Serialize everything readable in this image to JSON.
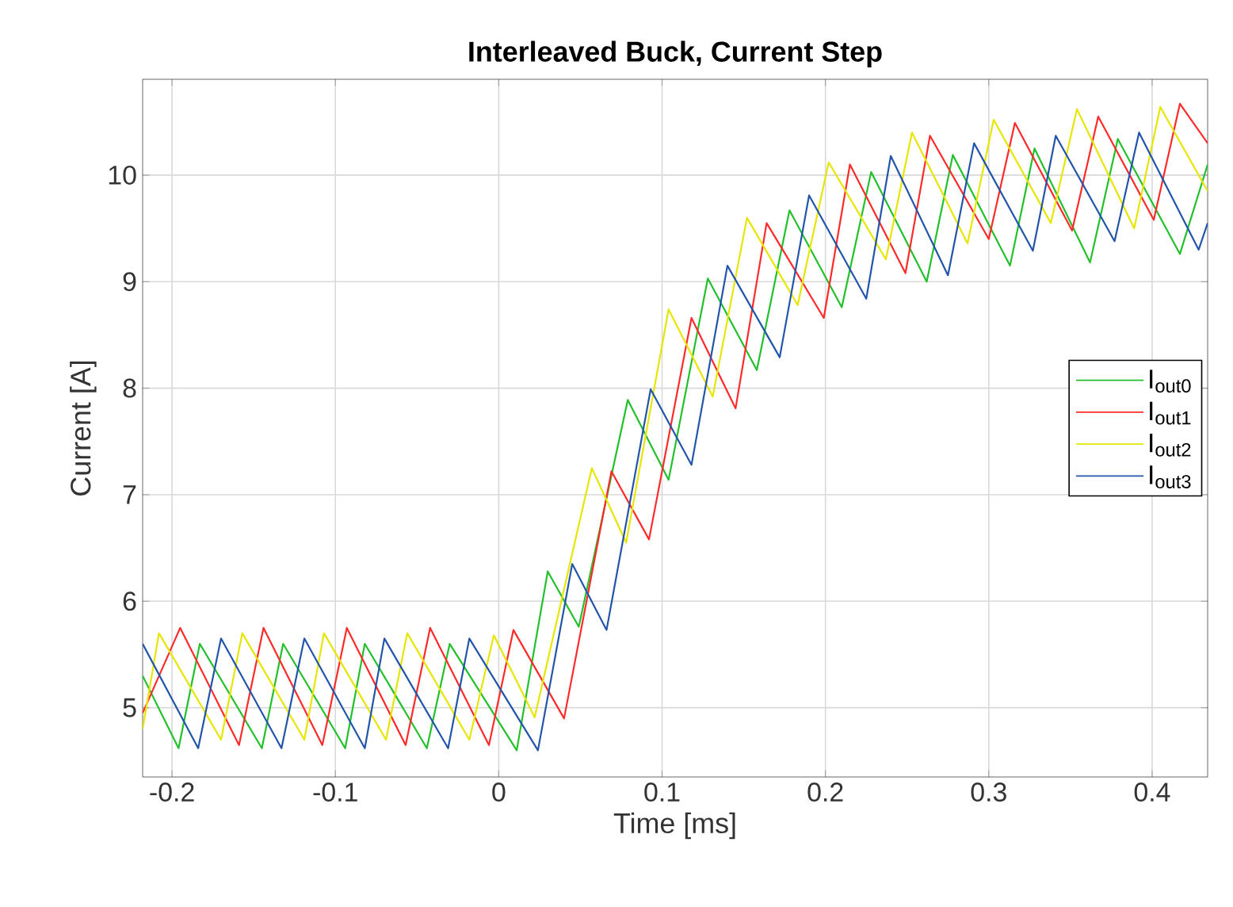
{
  "chart_data": {
    "type": "line",
    "title": "Interleaved Buck, Current Step",
    "xlabel": "Time [ms]",
    "ylabel": "Current [A]",
    "xlim": [
      -0.218,
      0.434
    ],
    "ylim": [
      4.35,
      10.9
    ],
    "xticks": [
      -0.2,
      -0.1,
      0,
      0.1,
      0.2,
      0.3,
      0.4
    ],
    "yticks": [
      5,
      6,
      7,
      8,
      9,
      10
    ],
    "grid": true,
    "legend": "right",
    "marker": "none",
    "line_style": "solid",
    "series": [
      {
        "name": "I$_{out0}$",
        "color": "#22c02a",
        "x": [
          -0.218,
          -0.196,
          -0.183,
          -0.145,
          -0.132,
          -0.094,
          -0.082,
          -0.044,
          -0.03,
          0.011,
          0.03,
          0.049,
          0.079,
          0.104,
          0.128,
          0.158,
          0.178,
          0.21,
          0.228,
          0.262,
          0.278,
          0.313,
          0.328,
          0.362,
          0.379,
          0.417,
          0.434
        ],
        "values": [
          5.3,
          4.62,
          5.6,
          4.62,
          5.6,
          4.62,
          5.6,
          4.62,
          5.6,
          4.6,
          6.28,
          5.76,
          7.89,
          7.14,
          9.03,
          8.17,
          9.67,
          8.76,
          10.03,
          9.0,
          10.19,
          9.15,
          10.25,
          9.18,
          10.34,
          9.26,
          10.1
        ]
      },
      {
        "name": "I$_{out1}$",
        "color": "#ff2a2a",
        "x": [
          -0.218,
          -0.195,
          -0.159,
          -0.144,
          -0.108,
          -0.093,
          -0.057,
          -0.042,
          -0.006,
          0.009,
          0.04,
          0.069,
          0.092,
          0.118,
          0.145,
          0.164,
          0.199,
          0.215,
          0.249,
          0.264,
          0.3,
          0.316,
          0.351,
          0.367,
          0.401,
          0.417,
          0.434
        ],
        "values": [
          4.95,
          5.75,
          4.65,
          5.75,
          4.65,
          5.75,
          4.65,
          5.75,
          4.65,
          5.73,
          4.9,
          7.22,
          6.58,
          8.66,
          7.81,
          9.55,
          8.66,
          10.1,
          9.08,
          10.37,
          9.4,
          10.49,
          9.48,
          10.55,
          9.58,
          10.67,
          10.3
        ]
      },
      {
        "name": "I$_{out2}$",
        "color": "#e6e600",
        "x": [
          -0.218,
          -0.208,
          -0.17,
          -0.157,
          -0.119,
          -0.107,
          -0.069,
          -0.056,
          -0.018,
          -0.003,
          0.022,
          0.057,
          0.078,
          0.104,
          0.131,
          0.152,
          0.183,
          0.202,
          0.237,
          0.253,
          0.287,
          0.303,
          0.338,
          0.354,
          0.389,
          0.405,
          0.434
        ],
        "values": [
          4.8,
          5.7,
          4.7,
          5.7,
          4.7,
          5.7,
          4.7,
          5.7,
          4.7,
          5.68,
          4.91,
          7.25,
          6.55,
          8.74,
          7.92,
          9.6,
          8.78,
          10.12,
          9.21,
          10.4,
          9.36,
          10.52,
          9.55,
          10.62,
          9.5,
          10.64,
          9.85
        ]
      },
      {
        "name": "I$_{out3}$",
        "color": "#2255aa",
        "x": [
          -0.218,
          -0.184,
          -0.17,
          -0.133,
          -0.119,
          -0.082,
          -0.07,
          -0.031,
          -0.018,
          0.024,
          0.045,
          0.066,
          0.093,
          0.118,
          0.14,
          0.172,
          0.19,
          0.225,
          0.24,
          0.275,
          0.291,
          0.327,
          0.341,
          0.377,
          0.392,
          0.4285,
          0.434
        ],
        "values": [
          5.6,
          4.62,
          5.65,
          4.62,
          5.65,
          4.62,
          5.65,
          4.62,
          5.65,
          4.6,
          6.35,
          5.73,
          7.99,
          7.28,
          9.15,
          8.29,
          9.81,
          8.84,
          10.18,
          9.06,
          10.3,
          9.29,
          10.37,
          9.38,
          10.4,
          9.3,
          9.55
        ]
      }
    ]
  }
}
